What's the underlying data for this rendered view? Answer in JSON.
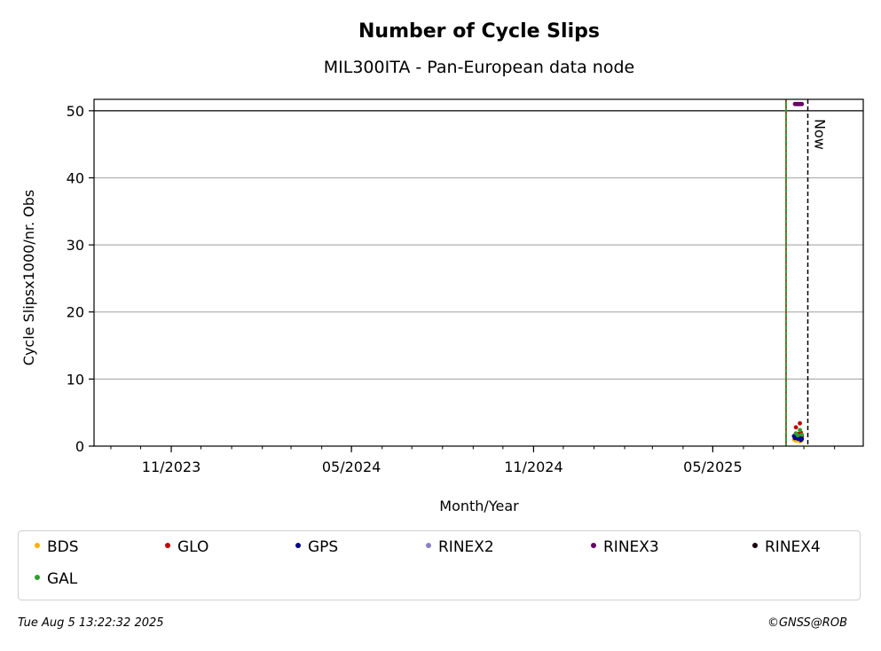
{
  "chart_data": {
    "type": "scatter",
    "title": "Number of Cycle Slips",
    "subtitle": "MIL300ITA - Pan-European data node",
    "xlabel": "Month/Year",
    "ylabel": "Cycle Slipsx1000/nr. Obs",
    "xlim": [
      "2023-08-15",
      "2025-09-30"
    ],
    "ylim": [
      0,
      51.7
    ],
    "yticks": [
      0,
      10,
      20,
      30,
      40,
      50
    ],
    "xticks": [
      {
        "date": "2023-11-01",
        "label": "11/2023"
      },
      {
        "date": "2024-05-01",
        "label": "05/2024"
      },
      {
        "date": "2024-11-01",
        "label": "11/2024"
      },
      {
        "date": "2025-05-01",
        "label": "05/2025"
      }
    ],
    "grid": "y",
    "threshold_line": 50,
    "vlines": [
      {
        "date": "2025-07-14",
        "style": "dashed-green-red"
      },
      {
        "date": "2025-08-05",
        "style": "dashed-black",
        "label": "Now"
      }
    ],
    "series": [
      {
        "name": "BDS",
        "color": "#ffb000",
        "points": [
          [
            "2025-07-22",
            1.0
          ],
          [
            "2025-07-24",
            0.8
          ],
          [
            "2025-07-26",
            0.9
          ],
          [
            "2025-07-28",
            0.7
          ],
          [
            "2025-07-30",
            0.9
          ]
        ]
      },
      {
        "name": "GLO",
        "color": "#c00000",
        "points": [
          [
            "2025-07-24",
            2.8
          ],
          [
            "2025-07-26",
            1.8
          ],
          [
            "2025-07-28",
            3.4
          ],
          [
            "2025-07-29",
            2.0
          ],
          [
            "2025-07-30",
            1.5
          ]
        ]
      },
      {
        "name": "GPS",
        "color": "#00008b",
        "points": [
          [
            "2025-07-22",
            1.5
          ],
          [
            "2025-07-23",
            1.2
          ],
          [
            "2025-07-24",
            1.6
          ],
          [
            "2025-07-25",
            1.3
          ],
          [
            "2025-07-26",
            1.1
          ],
          [
            "2025-07-27",
            1.4
          ],
          [
            "2025-07-28",
            1.2
          ],
          [
            "2025-07-29",
            0.9
          ],
          [
            "2025-07-30",
            1.1
          ]
        ]
      },
      {
        "name": "RINEX2",
        "color": "#8c7fc0",
        "points": []
      },
      {
        "name": "RINEX3",
        "color": "#660066",
        "points": [
          [
            "2025-07-23",
            51
          ],
          [
            "2025-07-24",
            51
          ],
          [
            "2025-07-25",
            51
          ],
          [
            "2025-07-26",
            51
          ],
          [
            "2025-07-27",
            51
          ],
          [
            "2025-07-28",
            51
          ],
          [
            "2025-07-29",
            51
          ],
          [
            "2025-07-30",
            51
          ]
        ]
      },
      {
        "name": "RINEX4",
        "color": "#1a0010",
        "points": []
      },
      {
        "name": "GAL",
        "color": "#2ca02c",
        "points": [
          [
            "2025-07-24",
            1.9
          ],
          [
            "2025-07-26",
            1.6
          ],
          [
            "2025-07-28",
            2.4
          ],
          [
            "2025-07-30",
            1.7
          ]
        ]
      }
    ]
  },
  "footer": {
    "timestamp": "Tue Aug  5 13:22:32 2025",
    "copyright": "©GNSS@ROB"
  }
}
